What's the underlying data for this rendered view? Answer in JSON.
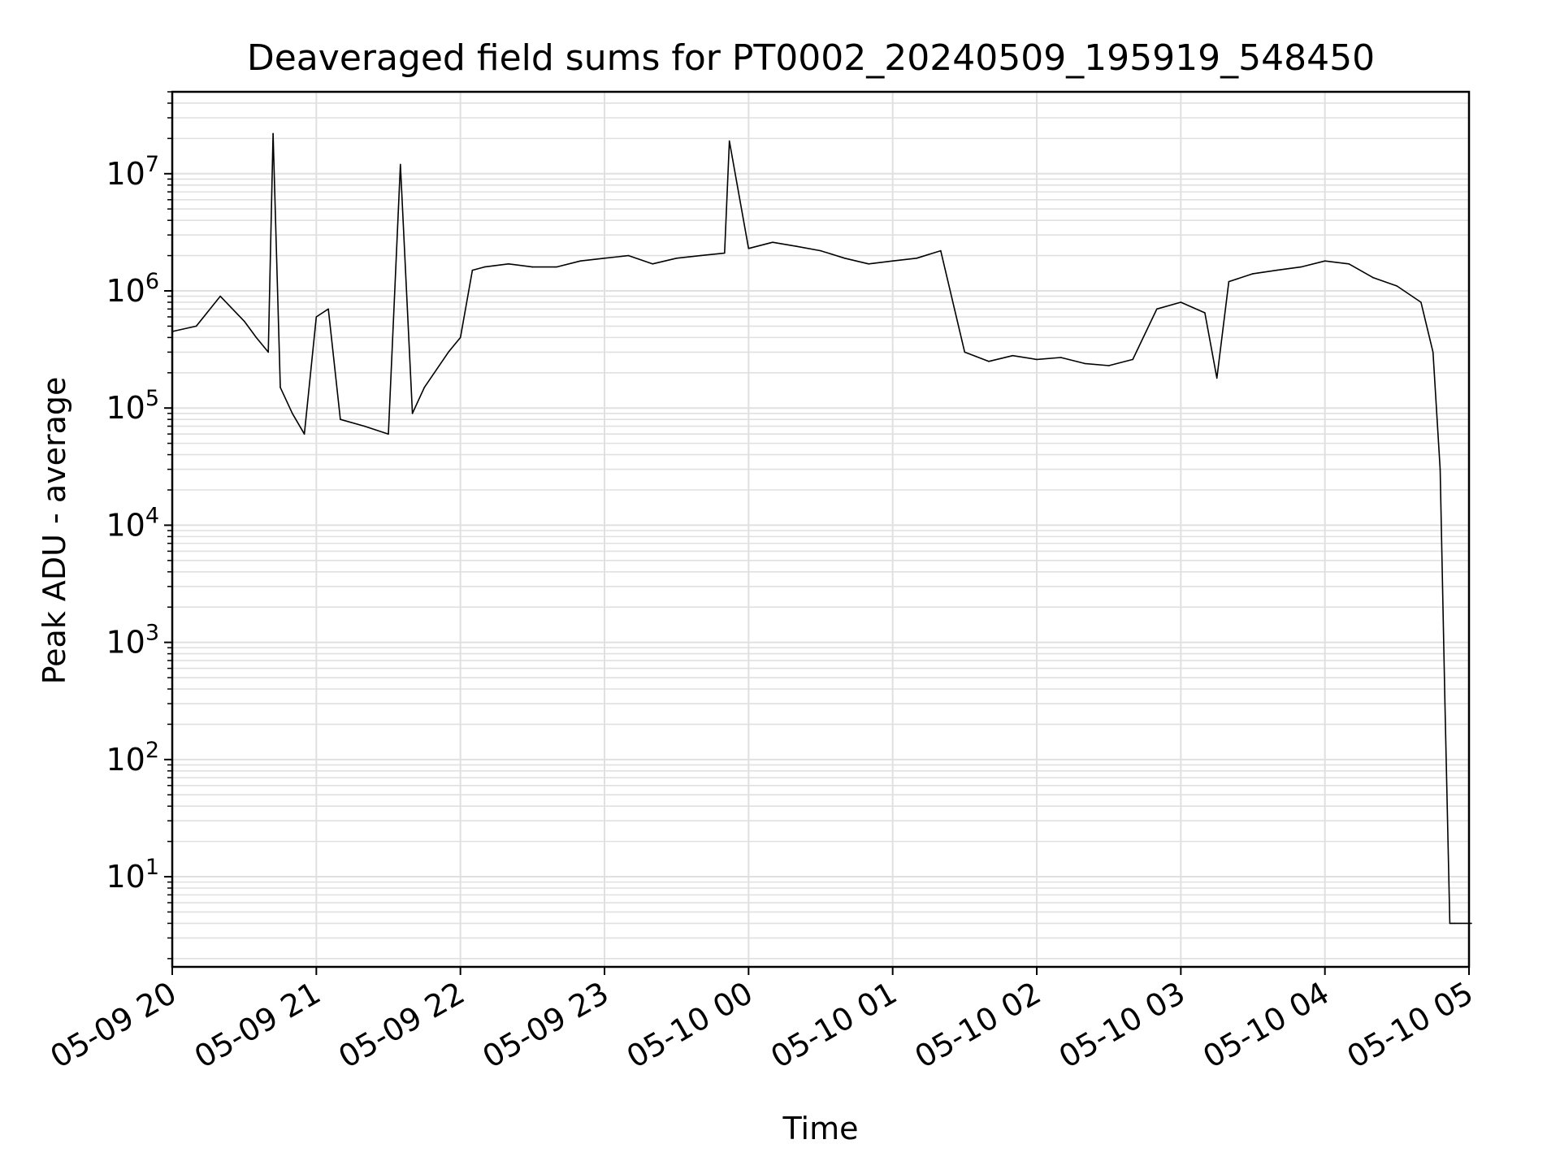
{
  "chart_data": {
    "type": "line",
    "title": "Deaveraged field sums for PT0002_20240509_195919_548450",
    "xlabel": "Time",
    "ylabel": "Peak ADU - average",
    "yscale": "log",
    "ylim": [
      1.7,
      50000000
    ],
    "xlim": [
      "05-09 20",
      "05-10 05"
    ],
    "grid": true,
    "line_color": "#000000",
    "grid_color": "#e0e0e0",
    "x_ticks": [
      "05-09 20",
      "05-09 21",
      "05-09 22",
      "05-09 23",
      "05-10 00",
      "05-10 01",
      "05-10 02",
      "05-10 03",
      "05-10 04",
      "05-10 05"
    ],
    "y_ticks": [
      {
        "value": 10,
        "base": "10",
        "exp": "1"
      },
      {
        "value": 100,
        "base": "10",
        "exp": "2"
      },
      {
        "value": 1000,
        "base": "10",
        "exp": "3"
      },
      {
        "value": 10000,
        "base": "10",
        "exp": "4"
      },
      {
        "value": 100000,
        "base": "10",
        "exp": "5"
      },
      {
        "value": 1000000,
        "base": "10",
        "exp": "6"
      },
      {
        "value": 10000000,
        "base": "10",
        "exp": "7"
      }
    ],
    "series": [
      {
        "x": [
          "05-09 20:00",
          "05-09 20:10",
          "05-09 20:20",
          "05-09 20:30",
          "05-09 20:35",
          "05-09 20:40",
          "05-09 20:42",
          "05-09 20:45",
          "05-09 20:50",
          "05-09 20:55",
          "05-09 21:00",
          "05-09 21:05",
          "05-09 21:10",
          "05-09 21:20",
          "05-09 21:30",
          "05-09 21:35",
          "05-09 21:40",
          "05-09 21:45",
          "05-09 21:55",
          "05-09 22:00",
          "05-09 22:05",
          "05-09 22:10",
          "05-09 22:20",
          "05-09 22:30",
          "05-09 22:40",
          "05-09 22:50",
          "05-09 23:00",
          "05-09 23:10",
          "05-09 23:20",
          "05-09 23:30",
          "05-09 23:40",
          "05-09 23:50",
          "05-09 23:52",
          "05-10 00:00",
          "05-10 00:10",
          "05-10 00:20",
          "05-10 00:30",
          "05-10 00:40",
          "05-10 00:50",
          "05-10 01:00",
          "05-10 01:10",
          "05-10 01:20",
          "05-10 01:30",
          "05-10 01:40",
          "05-10 01:50",
          "05-10 02:00",
          "05-10 02:10",
          "05-10 02:20",
          "05-10 02:30",
          "05-10 02:40",
          "05-10 02:50",
          "05-10 03:00",
          "05-10 03:10",
          "05-10 03:15",
          "05-10 03:20",
          "05-10 03:30",
          "05-10 03:40",
          "05-10 03:50",
          "05-10 04:00",
          "05-10 04:10",
          "05-10 04:20",
          "05-10 04:30",
          "05-10 04:40",
          "05-10 04:45",
          "05-10 04:48",
          "05-10 04:50",
          "05-10 04:52",
          "05-10 04:53",
          "05-10 04:54",
          "05-10 05:00",
          "05-10 05:01"
        ],
        "y": [
          450000,
          500000,
          900000,
          550000,
          400000,
          300000,
          22000000,
          150000,
          90000,
          60000,
          600000,
          700000,
          80000,
          70000,
          60000,
          12000000,
          90000,
          150000,
          300000,
          400000,
          1500000,
          1600000,
          1700000,
          1600000,
          1600000,
          1800000,
          1900000,
          2000000,
          1700000,
          1900000,
          2000000,
          2100000,
          19000000,
          2300000,
          2600000,
          2400000,
          2200000,
          1900000,
          1700000,
          1800000,
          1900000,
          2200000,
          300000,
          250000,
          280000,
          260000,
          270000,
          240000,
          230000,
          260000,
          700000,
          800000,
          650000,
          180000,
          1200000,
          1400000,
          1500000,
          1600000,
          1800000,
          1700000,
          1300000,
          1100000,
          800000,
          300000,
          30000,
          300,
          4,
          4,
          4,
          4,
          4
        ]
      }
    ]
  }
}
